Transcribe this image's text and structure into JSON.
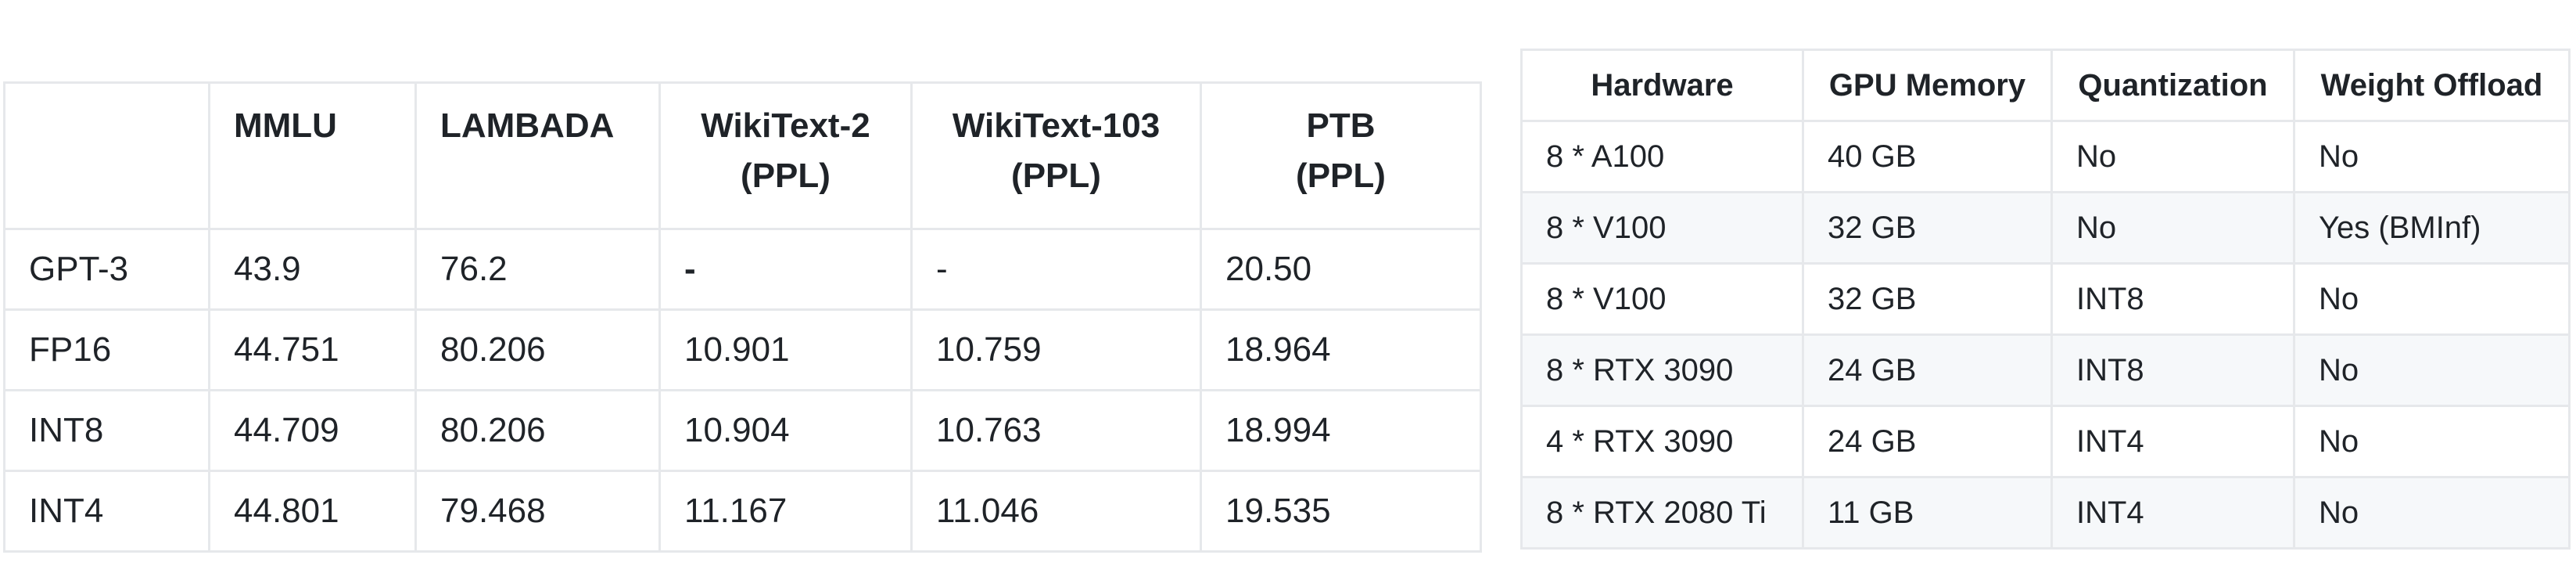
{
  "benchmark_table": {
    "headers": [
      "",
      "MMLU",
      "LAMBADA",
      "WikiText-2\n(PPL)",
      "WikiText-103\n(PPL)",
      "PTB\n(PPL)"
    ],
    "header_parts": {
      "mmlu": "MMLU",
      "lambada": "LAMBADA",
      "wikitext2_name": "WikiText-2",
      "wikitext103_name": "WikiText-103",
      "ptb_name": "PTB",
      "ppl_suffix": "(PPL)"
    },
    "rows": [
      [
        "GPT-3",
        "43.9",
        "76.2",
        "-",
        "-",
        "20.50"
      ],
      [
        "FP16",
        "44.751",
        "80.206",
        "10.901",
        "10.759",
        "18.964"
      ],
      [
        "INT8",
        "44.709",
        "80.206",
        "10.904",
        "10.763",
        "18.994"
      ],
      [
        "INT4",
        "44.801",
        "79.468",
        "11.167",
        "11.046",
        "19.535"
      ]
    ]
  },
  "hardware_table": {
    "headers": [
      "Hardware",
      "GPU Memory",
      "Quantization",
      "Weight Offload"
    ],
    "rows": [
      [
        "8 * A100",
        "40 GB",
        "No",
        "No"
      ],
      [
        "8 * V100",
        "32 GB",
        "No",
        "Yes (BMInf)"
      ],
      [
        "8 * V100",
        "32 GB",
        "INT8",
        "No"
      ],
      [
        "8 * RTX 3090",
        "24 GB",
        "INT8",
        "No"
      ],
      [
        "4 * RTX 3090",
        "24 GB",
        "INT4",
        "No"
      ],
      [
        "8 * RTX 2080 Ti",
        "11 GB",
        "INT4",
        "No"
      ]
    ]
  }
}
